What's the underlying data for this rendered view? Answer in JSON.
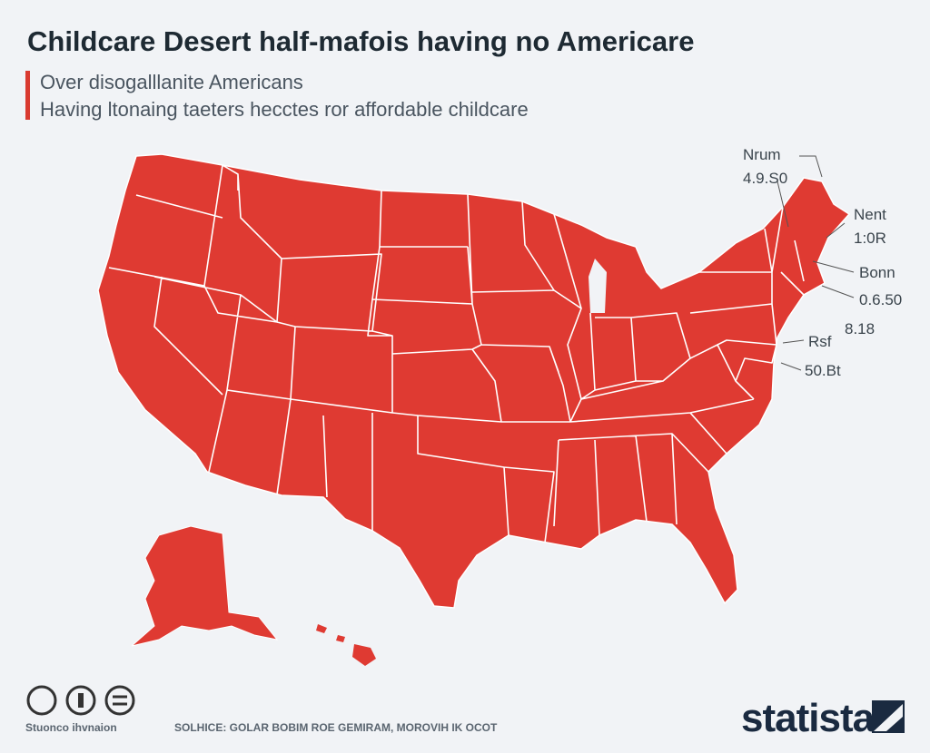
{
  "header": {
    "title": "Childcare Desert half-mafois having no Americare",
    "subtitle": [
      "Over disogalllanite Americans",
      "Having ltonaing taeters hecctes ror affordable childcare"
    ]
  },
  "callouts": [
    "Nrum",
    "4.9.S0",
    "Nent",
    "1:0R",
    "Bonn",
    "0.6.50",
    "8.18",
    "Rsf",
    "50.Bt"
  ],
  "footer": {
    "credit": "Stuonco ihvnaion",
    "source": "SOLHICE: GOLAR BOBIM ROE GEMIRAM, MOROVIH IK OCOT",
    "brand": "statista"
  }
}
